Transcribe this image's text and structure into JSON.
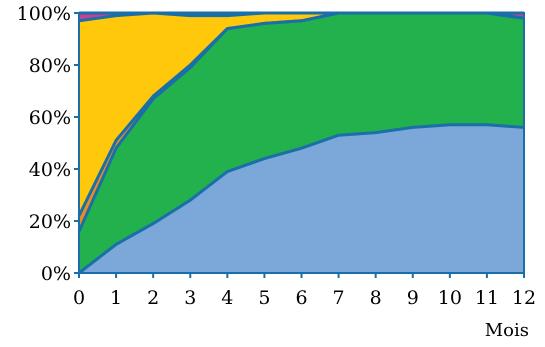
{
  "chart_data": {
    "type": "area",
    "stacked": true,
    "normalized": true,
    "title": "",
    "xlabel": "Mois",
    "ylabel": "",
    "x": [
      0,
      1,
      2,
      3,
      4,
      5,
      6,
      7,
      8,
      9,
      10,
      11,
      12
    ],
    "xlim": [
      0,
      12
    ],
    "ylim": [
      0,
      100
    ],
    "y_ticks": [
      0,
      20,
      40,
      60,
      80,
      100
    ],
    "y_tick_labels": [
      "0%",
      "20%",
      "40%",
      "60%",
      "80%",
      "100%"
    ],
    "x_tick_labels": [
      "0",
      "1",
      "2",
      "3",
      "4",
      "5",
      "6",
      "7",
      "8",
      "9",
      "10",
      "11",
      "12"
    ],
    "grid": false,
    "legend": "none",
    "series": [
      {
        "color": "#7ba7d9",
        "values": [
          0,
          11,
          19,
          28,
          39,
          44,
          48,
          53,
          54,
          56,
          57,
          57,
          56
        ]
      },
      {
        "color": "#22b14c",
        "values": [
          16,
          37,
          48,
          51,
          55,
          52,
          49,
          48,
          48,
          47,
          44,
          45,
          42
        ]
      },
      {
        "color": "#f08c1e",
        "values": [
          6,
          3,
          1,
          1,
          0,
          0,
          0,
          0,
          0,
          0,
          0,
          0,
          0
        ]
      },
      {
        "color": "#ffc80a",
        "values": [
          75,
          48,
          33,
          19,
          5,
          5,
          5,
          1,
          0,
          0,
          1,
          0,
          0
        ]
      },
      {
        "color": "#c2419b",
        "values": [
          3,
          1,
          0,
          1,
          1,
          0,
          0,
          0,
          0,
          0,
          0,
          0,
          2
        ]
      }
    ],
    "line_color": "#1a6fa8",
    "axis_color": "#1a6fa8"
  }
}
